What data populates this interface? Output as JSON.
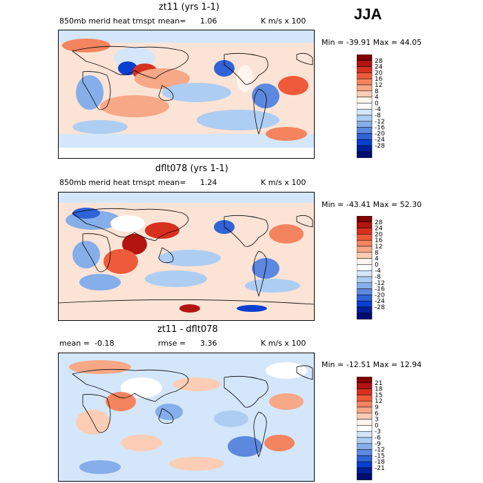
{
  "season": "JJA",
  "panels": [
    {
      "title": "zt11 (yrs 1-1)",
      "variable": "850mb merid heat trnspt",
      "mean_label": "mean=",
      "mean": "1.06",
      "units": "K m/s x 100",
      "minmax": "Min = -39.91 Max =  44.05",
      "levels": [
        "28",
        "24",
        "20",
        "16",
        "12",
        "8",
        "4",
        "0",
        "-4",
        "-8",
        "-12",
        "-16",
        "-20",
        "-24",
        "-28"
      ]
    },
    {
      "title": "dflt078 (yrs 1-1)",
      "variable": "850mb merid heat trnspt",
      "mean_label": "mean=",
      "mean": "1.24",
      "units": "K m/s x 100",
      "minmax": "Min = -43.41 Max =  52.30",
      "levels": [
        "28",
        "24",
        "20",
        "16",
        "12",
        "8",
        "4",
        "0",
        "-4",
        "-8",
        "-12",
        "-16",
        "-20",
        "-24",
        "-28"
      ]
    },
    {
      "title": "zt11 - dflt078",
      "mean_label": "mean =",
      "mean": "-0.18",
      "rmse_label": "rmse =",
      "rmse": "3.36",
      "units": "K m/s x 100",
      "minmax": "Min = -12.51 Max =  12.94",
      "levels": [
        "21",
        "18",
        "15",
        "12",
        "9",
        "6",
        "3",
        "0",
        "-3",
        "-6",
        "-9",
        "-12",
        "-15",
        "-18",
        "-21"
      ]
    }
  ],
  "colors": {
    "scale": [
      "#7f0000",
      "#b2140f",
      "#d7301f",
      "#ef5a3a",
      "#f4845f",
      "#f7a887",
      "#fbcdb5",
      "#fff4ee",
      "#ffffff",
      "#d4e6fa",
      "#aecdf3",
      "#85aeea",
      "#5c88df",
      "#3163d6",
      "#0b3fcf",
      "#00209a",
      "#000c6e"
    ]
  },
  "chart_data": [
    {
      "type": "heatmap",
      "title": "zt11 (yrs 1-1)",
      "subtitle": "850mb merid heat trnspt",
      "mean": 1.06,
      "units": "K m/s x 100",
      "min": -39.91,
      "max": 44.05,
      "contour_levels": [
        -28,
        -24,
        -20,
        -16,
        -12,
        -8,
        -4,
        0,
        4,
        8,
        12,
        16,
        20,
        24,
        28
      ]
    },
    {
      "type": "heatmap",
      "title": "dflt078 (yrs 1-1)",
      "subtitle": "850mb merid heat trnspt",
      "mean": 1.24,
      "units": "K m/s x 100",
      "min": -43.41,
      "max": 52.3,
      "contour_levels": [
        -28,
        -24,
        -20,
        -16,
        -12,
        -8,
        -4,
        0,
        4,
        8,
        12,
        16,
        20,
        24,
        28
      ]
    },
    {
      "type": "heatmap",
      "title": "zt11 - dflt078",
      "mean": -0.18,
      "rmse": 3.36,
      "units": "K m/s x 100",
      "min": -12.51,
      "max": 12.94,
      "contour_levels": [
        -21,
        -18,
        -15,
        -12,
        -9,
        -6,
        -3,
        0,
        3,
        6,
        9,
        12,
        15,
        18,
        21
      ]
    }
  ]
}
